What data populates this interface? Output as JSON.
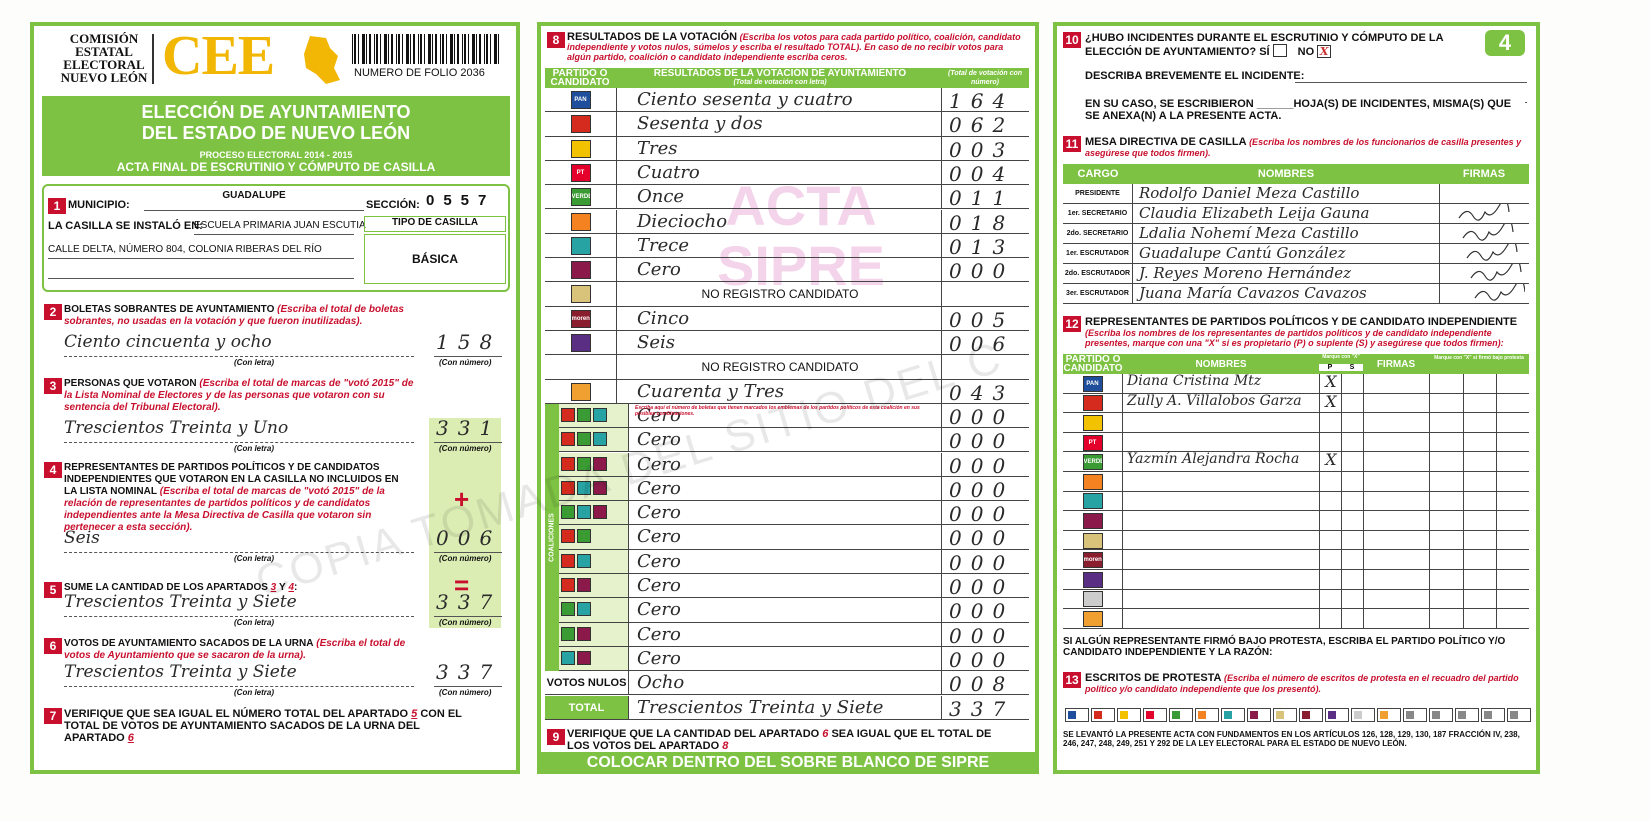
{
  "header": {
    "org_line1": "COMISIÓN",
    "org_line2": "ESTATAL",
    "org_line3": "ELECTORAL",
    "org_line4": "NUEVO LEÓN",
    "logo": "CEE",
    "folio": "NUMERO DE FOLIO 2036",
    "page_number": "4"
  },
  "title": {
    "line1": "ELECCIÓN DE AYUNTAMIENTO",
    "line2": "DEL ESTADO DE NUEVO LEÓN",
    "process": "PROCESO ELECTORAL 2014 - 2015",
    "act": "ACTA FINAL DE ESCRUTINIO Y CÓMPUTO DE CASILLA"
  },
  "s1": {
    "number": "1",
    "municipio_label": "MUNICIPIO:",
    "municipio": "GUADALUPE",
    "seccion_label": "SECCIÓN:",
    "seccion": "0557",
    "casilla_label": "LA CASILLA SE INSTALÓ EN:",
    "casilla": "ESCUELA PRIMARIA JUAN ESCUTIA",
    "address": "CALLE DELTA, NÚMERO 804, COLONIA RIBERAS DEL RÍO",
    "tipo_label": "TIPO DE CASILLA",
    "tipo": "BÁSICA"
  },
  "s2": {
    "number": "2",
    "title": "BOLETAS SOBRANTES DE AYUNTAMIENTO",
    "instruction": "(Escriba el total de boletas sobrantes, no usadas en la votación y que fueron inutilizadas).",
    "letters": "Ciento cincuenta y ocho",
    "digits": "158",
    "letters_caption": "(Con letra)",
    "digits_caption": "(Con número)"
  },
  "s3": {
    "number": "3",
    "title": "PERSONAS QUE VOTARON",
    "instruction": "(Escriba el total de marcas de \"votó 2015\" de la Lista Nominal de Electores y de las personas que votaron con su sentencia del Tribunal Electoral).",
    "letters": "Trescientos Treinta y Uno",
    "digits": "331",
    "letters_caption": "(Con letra)",
    "digits_caption": "(Con número)"
  },
  "s4": {
    "number": "4",
    "title": "REPRESENTANTES DE PARTIDOS POLÍTICOS Y DE CANDIDATOS INDEPENDIENTES QUE VOTARON EN LA CASILLA NO INCLUIDOS EN LA LISTA NOMINAL",
    "instruction": "(Escriba el total de marcas de \"votó 2015\" de la relación de representantes de partidos políticos y de candidatos independientes ante la Mesa Directiva de Casilla que votaron sin pertenecer a esta sección).",
    "letters": "Seis",
    "digits": "006",
    "letters_caption": "(Con letra)",
    "digits_caption": "(Con número)",
    "operator": "+"
  },
  "s5": {
    "number": "5",
    "title": "SUME LA CANTIDAD DE LOS APARTADOS",
    "ref_a": "3",
    "join": "Y",
    "ref_b": "4",
    "colon": ":",
    "letters": "Trescientos Treinta y Siete",
    "digits": "337",
    "letters_caption": "(Con letra)",
    "digits_caption": "(Con número)",
    "operator": "="
  },
  "s6": {
    "number": "6",
    "title": "VOTOS DE AYUNTAMIENTO SACADOS DE LA URNA",
    "instruction": "(Escriba el total de votos de Ayuntamiento que se sacaron de la urna).",
    "letters": "Trescientos Treinta y Siete",
    "digits": "337",
    "letters_caption": "(Con letra)",
    "digits_caption": "(Con número)"
  },
  "s7": {
    "number": "7",
    "text_a": "VERIFIQUE QUE SEA IGUAL EL NÚMERO TOTAL DEL APARTADO",
    "ref_a": "5",
    "text_b": "CON EL TOTAL DE VOTOS DE AYUNTAMIENTO SACADOS DE LA URNA DEL APARTADO",
    "ref_b": "6"
  },
  "s8": {
    "number": "8",
    "title": "RESULTADOS DE LA VOTACIÓN",
    "instruction": "(Escriba los votos para cada partido político, coalición, candidato independiente y votos nulos, súmelos y escriba el resultado TOTAL).",
    "instruction2": "En caso de no recibir votos para algún partido, coalición o candidato independiente escriba ceros.",
    "col_party": "PARTIDO O CANDIDATO",
    "col_results": "RESULTADOS DE LA VOTACIÓN DE AYUNTAMIENTO",
    "col_results_sub": "(Total de votación con letra)",
    "col_number": "(Total de votación con número)",
    "rows": [
      {
        "logo": {
          "color": "#1f4e9c",
          "text": "PAN"
        },
        "letters": "Ciento sesenta y cuatro",
        "digits": "164"
      },
      {
        "logo": {
          "color": "#d52b1e"
        },
        "letters": "Sesenta y dos",
        "digits": "062"
      },
      {
        "logo": {
          "color": "#f2c200"
        },
        "letters": "Tres",
        "digits": "003"
      },
      {
        "logo": {
          "color": "#e4002b",
          "text": "PT"
        },
        "letters": "Cuatro",
        "digits": "004"
      },
      {
        "logo": {
          "color": "#3a9b35",
          "text": "VERDE"
        },
        "letters": "Once",
        "digits": "011"
      },
      {
        "logo": {
          "color": "#f58220"
        },
        "letters": "Dieciocho",
        "digits": "018"
      },
      {
        "logo": {
          "color": "#27a3a3"
        },
        "letters": "Trece",
        "digits": "013"
      },
      {
        "logo": {
          "color": "#8b1a4a"
        },
        "letters": "Cero",
        "digits": "000"
      },
      {
        "logo": {
          "color": "#d9c27a"
        },
        "note": "NO REGISTRO CANDIDATO"
      },
      {
        "logo": {
          "color": "#8b1e2e",
          "text": "morena"
        },
        "letters": "Cinco",
        "digits": "005"
      },
      {
        "logo": {
          "color": "#5a2e82"
        },
        "letters": "Seis",
        "digits": "006"
      },
      {
        "note": "NO REGISTRO CANDIDATO"
      },
      {
        "logo": {
          "color": "#f0a030"
        },
        "letters": "Cuarenta y Tres",
        "digits": "043"
      }
    ],
    "coalition_label": "COALICIONES",
    "coalition_note": "Escriba aquí el número de boletas que tienen marcados los emblemas de los partidos políticos de esta coalición en sus posibles combinaciones.",
    "coalitions": [
      {
        "colors": [
          "#d52b1e",
          "#3a9b35",
          "#27a3a3"
        ],
        "letters": "Cero",
        "digits": "000"
      },
      {
        "colors": [
          "#d52b1e",
          "#3a9b35",
          "#27a3a3"
        ],
        "letters": "Cero",
        "digits": "000"
      },
      {
        "colors": [
          "#d52b1e",
          "#3a9b35",
          "#8b1a4a"
        ],
        "letters": "Cero",
        "digits": "000"
      },
      {
        "colors": [
          "#d52b1e",
          "#27a3a3",
          "#8b1a4a"
        ],
        "letters": "Cero",
        "digits": "000"
      },
      {
        "colors": [
          "#3a9b35",
          "#27a3a3",
          "#8b1a4a"
        ],
        "letters": "Cero",
        "digits": "000"
      },
      {
        "colors": [
          "#d52b1e",
          "#3a9b35"
        ],
        "letters": "Cero",
        "digits": "000"
      },
      {
        "colors": [
          "#d52b1e",
          "#27a3a3"
        ],
        "letters": "Cero",
        "digits": "000"
      },
      {
        "colors": [
          "#d52b1e",
          "#8b1a4a"
        ],
        "letters": "Cero",
        "digits": "000"
      },
      {
        "colors": [
          "#3a9b35",
          "#27a3a3"
        ],
        "letters": "Cero",
        "digits": "000"
      },
      {
        "colors": [
          "#3a9b35",
          "#8b1a4a"
        ],
        "letters": "Cero",
        "digits": "000"
      },
      {
        "colors": [
          "#27a3a3",
          "#8b1a4a"
        ],
        "letters": "Cero",
        "digits": "000"
      }
    ],
    "nulos": {
      "label": "VOTOS NULOS",
      "letters": "Ocho",
      "digits": "008"
    },
    "total": {
      "label": "TOTAL",
      "letters": "Trescientos Treinta y Siete",
      "digits": "337"
    },
    "stamp_line1": "ACTA",
    "stamp_line2": "SIPRE"
  },
  "s9": {
    "number": "9",
    "text_a": "VERIFIQUE QUE LA CANTIDAD DEL APARTADO",
    "ref_a": "6",
    "text_b": "SEA IGUAL QUE EL TOTAL DE LOS VOTOS DEL APARTADO",
    "ref_b": "8"
  },
  "footer": "COLOCAR DENTRO DEL SOBRE BLANCO DE SIPRE",
  "s10": {
    "number": "10",
    "question": "¿HUBO INCIDENTES DURANTE EL ESCRUTINIO Y CÓMPUTO DE LA ELECCIÓN DE AYUNTAMIENTO?",
    "yes": "SÍ",
    "no": "NO",
    "mark": "X",
    "describe": "DESCRIBA BREVEMENTE EL INCIDENTE:",
    "sheets": "EN SU CASO, SE ESCRIBIERON ______HOJA(S) DE INCIDENTES, MISMA(S) QUE SE ANEXA(N) A LA PRESENTE ACTA."
  },
  "s11": {
    "number": "11",
    "title": "MESA DIRECTIVA DE CASILLA",
    "instruction": "(Escriba los nombres de los funcionarios de casilla presentes y asegúrese que todos firmen).",
    "col_role": "CARGO",
    "col_names": "NOMBRES",
    "col_signatures": "FIRMAS",
    "rows": [
      {
        "role": "PRESIDENTE",
        "name": "Rodolfo Daniel Meza Castillo"
      },
      {
        "role": "1er. SECRETARIO",
        "name": "Claudia Elizabeth Leija Gauna"
      },
      {
        "role": "2do. SECRETARIO",
        "name": "Ldalia Nohemí Meza Castillo"
      },
      {
        "role": "1er. ESCRUTADOR",
        "name": "Guadalupe Cantú González"
      },
      {
        "role": "2do. ESCRUTADOR",
        "name": "J. Reyes Moreno Hernández"
      },
      {
        "role": "3er. ESCRUTADOR",
        "name": "Juana María Cavazos Cavazos"
      }
    ]
  },
  "s12": {
    "number": "12",
    "title": "REPRESENTANTES DE PARTIDOS POLÍTICOS Y DE CANDIDATO INDEPENDIENTE",
    "instruction": "(Escriba los nombres de los representantes de partidos políticos y de candidato independiente presentes, marque con una \"X\" si es propietario (P) o suplente (S) y asegúrese que todos firmen):",
    "col_party": "PARTIDO O CANDIDATO",
    "col_names": "NOMBRES",
    "col_mark": "Marque con \"X\"",
    "col_p": "P",
    "col_s": "S",
    "col_sign": "FIRMAS",
    "col_protest": "Marque con \"X\" si firmó bajo protesta",
    "rows": [
      {
        "logo": {
          "color": "#1f4e9c",
          "text": "PAN"
        },
        "name": "Diana Cristina Mtz",
        "p": "X"
      },
      {
        "logo": {
          "color": "#d52b1e"
        },
        "name": "Zully A. Villalobos Garza",
        "p": "X"
      },
      {
        "logo": {
          "color": "#f2c200"
        }
      },
      {
        "logo": {
          "color": "#e4002b",
          "text": "PT"
        }
      },
      {
        "logo": {
          "color": "#3a9b35",
          "text": "VERDE"
        },
        "name": "Yazmín Alejandra Rocha",
        "p": "X"
      },
      {
        "logo": {
          "color": "#f58220"
        }
      },
      {
        "logo": {
          "color": "#27a3a3"
        }
      },
      {
        "logo": {
          "color": "#8b1a4a"
        }
      },
      {
        "logo": {
          "color": "#d9c27a"
        }
      },
      {
        "logo": {
          "color": "#8b1e2e",
          "text": "morena"
        }
      },
      {
        "logo": {
          "color": "#5a2e82"
        }
      },
      {
        "logo": {
          "color": "#cccccc"
        }
      },
      {
        "logo": {
          "color": "#f0a030"
        }
      }
    ],
    "protest_note": "SI ALGÚN REPRESENTANTE FIRMÓ BAJO PROTESTA, ESCRIBA EL PARTIDO POLÍTICO Y/O CANDIDATO INDEPENDIENTE Y LA RAZÓN:"
  },
  "s13": {
    "number": "13",
    "title": "ESCRITOS DE PROTESTA",
    "instruction": "(Escriba el número de escritos de protesta en el recuadro del partido político y/o candidato independiente que los presentó).",
    "legal": "SE LEVANTÓ LA PRESENTE ACTA CON FUNDAMENTOS EN LOS ARTÍCULOS 126, 128, 129, 130, 187 FRACCIÓN IV, 238, 246, 247, 248, 249, 251 Y 292 DE LA LEY ELECTORAL PARA EL ESTADO DE NUEVO LEÓN."
  },
  "watermark": "COPIA TOMADA DEL SITIO DEL C"
}
